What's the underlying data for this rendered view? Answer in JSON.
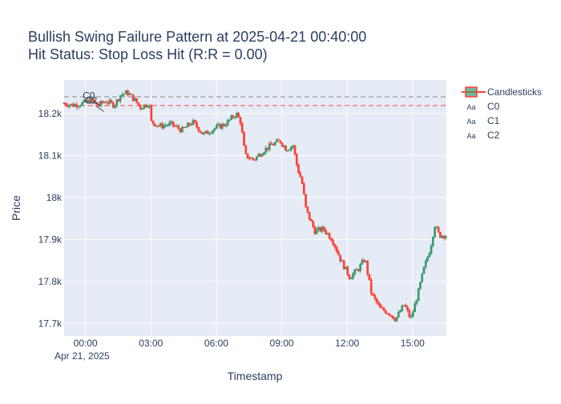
{
  "chart_data": {
    "type": "candlestick",
    "title_line1": "Bullish Swing Failure Pattern at 2025-04-21 00:40:00",
    "title_line2": "Hit Status: Stop Loss Hit (R:R = 0.00)",
    "xlabel": "Timestamp",
    "ylabel": "Price",
    "x_date_label": "Apr 21, 2025",
    "x_range_hours": [
      -0.98,
      16.55
    ],
    "ylim": [
      17670,
      18280
    ],
    "x_ticks": [
      {
        "h": 0,
        "label": "00:00"
      },
      {
        "h": 3,
        "label": "03:00"
      },
      {
        "h": 6,
        "label": "06:00"
      },
      {
        "h": 9,
        "label": "09:00"
      },
      {
        "h": 12,
        "label": "12:00"
      },
      {
        "h": 15,
        "label": "15:00"
      }
    ],
    "y_ticks": [
      {
        "v": 17700,
        "label": "17.7k"
      },
      {
        "v": 17800,
        "label": "17.8k"
      },
      {
        "v": 17900,
        "label": "17.9k"
      },
      {
        "v": 18000,
        "label": "18k"
      },
      {
        "v": 18100,
        "label": "18.1k"
      },
      {
        "v": 18200,
        "label": "18.2k"
      }
    ],
    "grid": true,
    "legend_position": "top-right",
    "colors": {
      "up": "#3d9970",
      "down": "#ff4136",
      "plot_bg": "#e5ecf6",
      "text": "#2a3f5f"
    },
    "legend": [
      {
        "name": "Candlesticks",
        "marker": "candle"
      },
      {
        "name": "C0",
        "marker": "Aa"
      },
      {
        "name": "C1",
        "marker": "Aa"
      },
      {
        "name": "C2",
        "marker": "Aa"
      }
    ],
    "annotations": [
      {
        "text": "C0",
        "h": 0.15,
        "price": 18235
      },
      {
        "text": "C2",
        "h": 0.25,
        "price": 18224
      }
    ],
    "hlines": [
      {
        "price": 18240,
        "color": "#888888",
        "dash": "6,4"
      },
      {
        "price": 18219,
        "color": "#ff4136",
        "dash": "6,4"
      }
    ],
    "price_path": [
      [
        -0.98,
        18225
      ],
      [
        -0.5,
        18220
      ],
      [
        0.0,
        18225
      ],
      [
        0.33,
        18232
      ],
      [
        0.67,
        18220
      ],
      [
        1.0,
        18230
      ],
      [
        1.4,
        18220
      ],
      [
        1.7,
        18245
      ],
      [
        2.0,
        18250
      ],
      [
        2.3,
        18235
      ],
      [
        2.6,
        18215
      ],
      [
        3.0,
        18225
      ],
      [
        3.1,
        18180
      ],
      [
        3.5,
        18170
      ],
      [
        4.0,
        18175
      ],
      [
        4.5,
        18160
      ],
      [
        5.0,
        18180
      ],
      [
        5.5,
        18150
      ],
      [
        6.0,
        18165
      ],
      [
        6.5,
        18175
      ],
      [
        7.0,
        18200
      ],
      [
        7.2,
        18180
      ],
      [
        7.4,
        18100
      ],
      [
        7.8,
        18090
      ],
      [
        8.2,
        18110
      ],
      [
        8.6,
        18125
      ],
      [
        9.0,
        18135
      ],
      [
        9.3,
        18115
      ],
      [
        9.6,
        18125
      ],
      [
        9.8,
        18070
      ],
      [
        10.0,
        18040
      ],
      [
        10.2,
        17970
      ],
      [
        10.6,
        17920
      ],
      [
        11.0,
        17925
      ],
      [
        11.4,
        17900
      ],
      [
        11.8,
        17850
      ],
      [
        12.2,
        17810
      ],
      [
        12.6,
        17830
      ],
      [
        12.9,
        17855
      ],
      [
        13.2,
        17770
      ],
      [
        13.6,
        17735
      ],
      [
        14.0,
        17725
      ],
      [
        14.3,
        17710
      ],
      [
        14.7,
        17745
      ],
      [
        15.0,
        17710
      ],
      [
        15.3,
        17765
      ],
      [
        15.6,
        17830
      ],
      [
        15.9,
        17880
      ],
      [
        16.1,
        17935
      ],
      [
        16.3,
        17910
      ],
      [
        16.55,
        17910
      ]
    ]
  }
}
